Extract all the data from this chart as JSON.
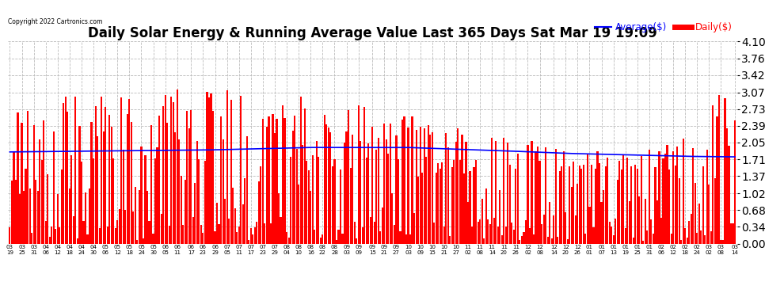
{
  "title": "Daily Solar Energy & Running Average Value Last 365 Days Sat Mar 19 19:09",
  "copyright": "Copyright 2022 Cartronics.com",
  "legend_avg": "Average($)",
  "legend_daily": "Daily($)",
  "avg_color": "blue",
  "bar_color": "red",
  "ylim": [
    0.0,
    4.1
  ],
  "yticks": [
    0.0,
    0.34,
    0.68,
    1.02,
    1.37,
    1.71,
    2.05,
    2.39,
    2.73,
    3.07,
    3.42,
    3.76,
    4.1
  ],
  "background_color": "#ffffff",
  "grid_color": "#bbbbbb",
  "title_fontsize": 12,
  "running_avg_keypoints_x": [
    0,
    50,
    100,
    150,
    200,
    250,
    280,
    310,
    340,
    364
  ],
  "running_avg_keypoints_y": [
    1.86,
    1.88,
    1.9,
    1.95,
    1.95,
    1.88,
    1.83,
    1.8,
    1.77,
    1.76
  ],
  "x_tick_labels": [
    "03\n19",
    "03\n25",
    "03\n31",
    "04\n06",
    "04\n12",
    "04\n18",
    "04\n24",
    "04\n30",
    "05\n06",
    "05\n12",
    "05\n18",
    "05\n24",
    "05\n30",
    "06\n05",
    "06\n11",
    "06\n17",
    "06\n23",
    "06\n29",
    "07\n05",
    "07\n11",
    "07\n17",
    "07\n23",
    "07\n29",
    "08\n04",
    "08\n10",
    "08\n16",
    "08\n22",
    "08\n28",
    "09\n03",
    "09\n09",
    "09\n15",
    "09\n21",
    "09\n27",
    "10\n03",
    "10\n09",
    "10\n15",
    "10\n21",
    "10\n27",
    "11\n02",
    "11\n08",
    "11\n14",
    "11\n20",
    "11\n26",
    "12\n02",
    "12\n08",
    "12\n14",
    "12\n20",
    "12\n26",
    "01\n01",
    "01\n07",
    "01\n13",
    "01\n19",
    "01\n25",
    "01\n31",
    "02\n06",
    "02\n12",
    "02\n18",
    "02\n24",
    "03\n02",
    "03\n08",
    "03\n14"
  ],
  "n_days": 365
}
